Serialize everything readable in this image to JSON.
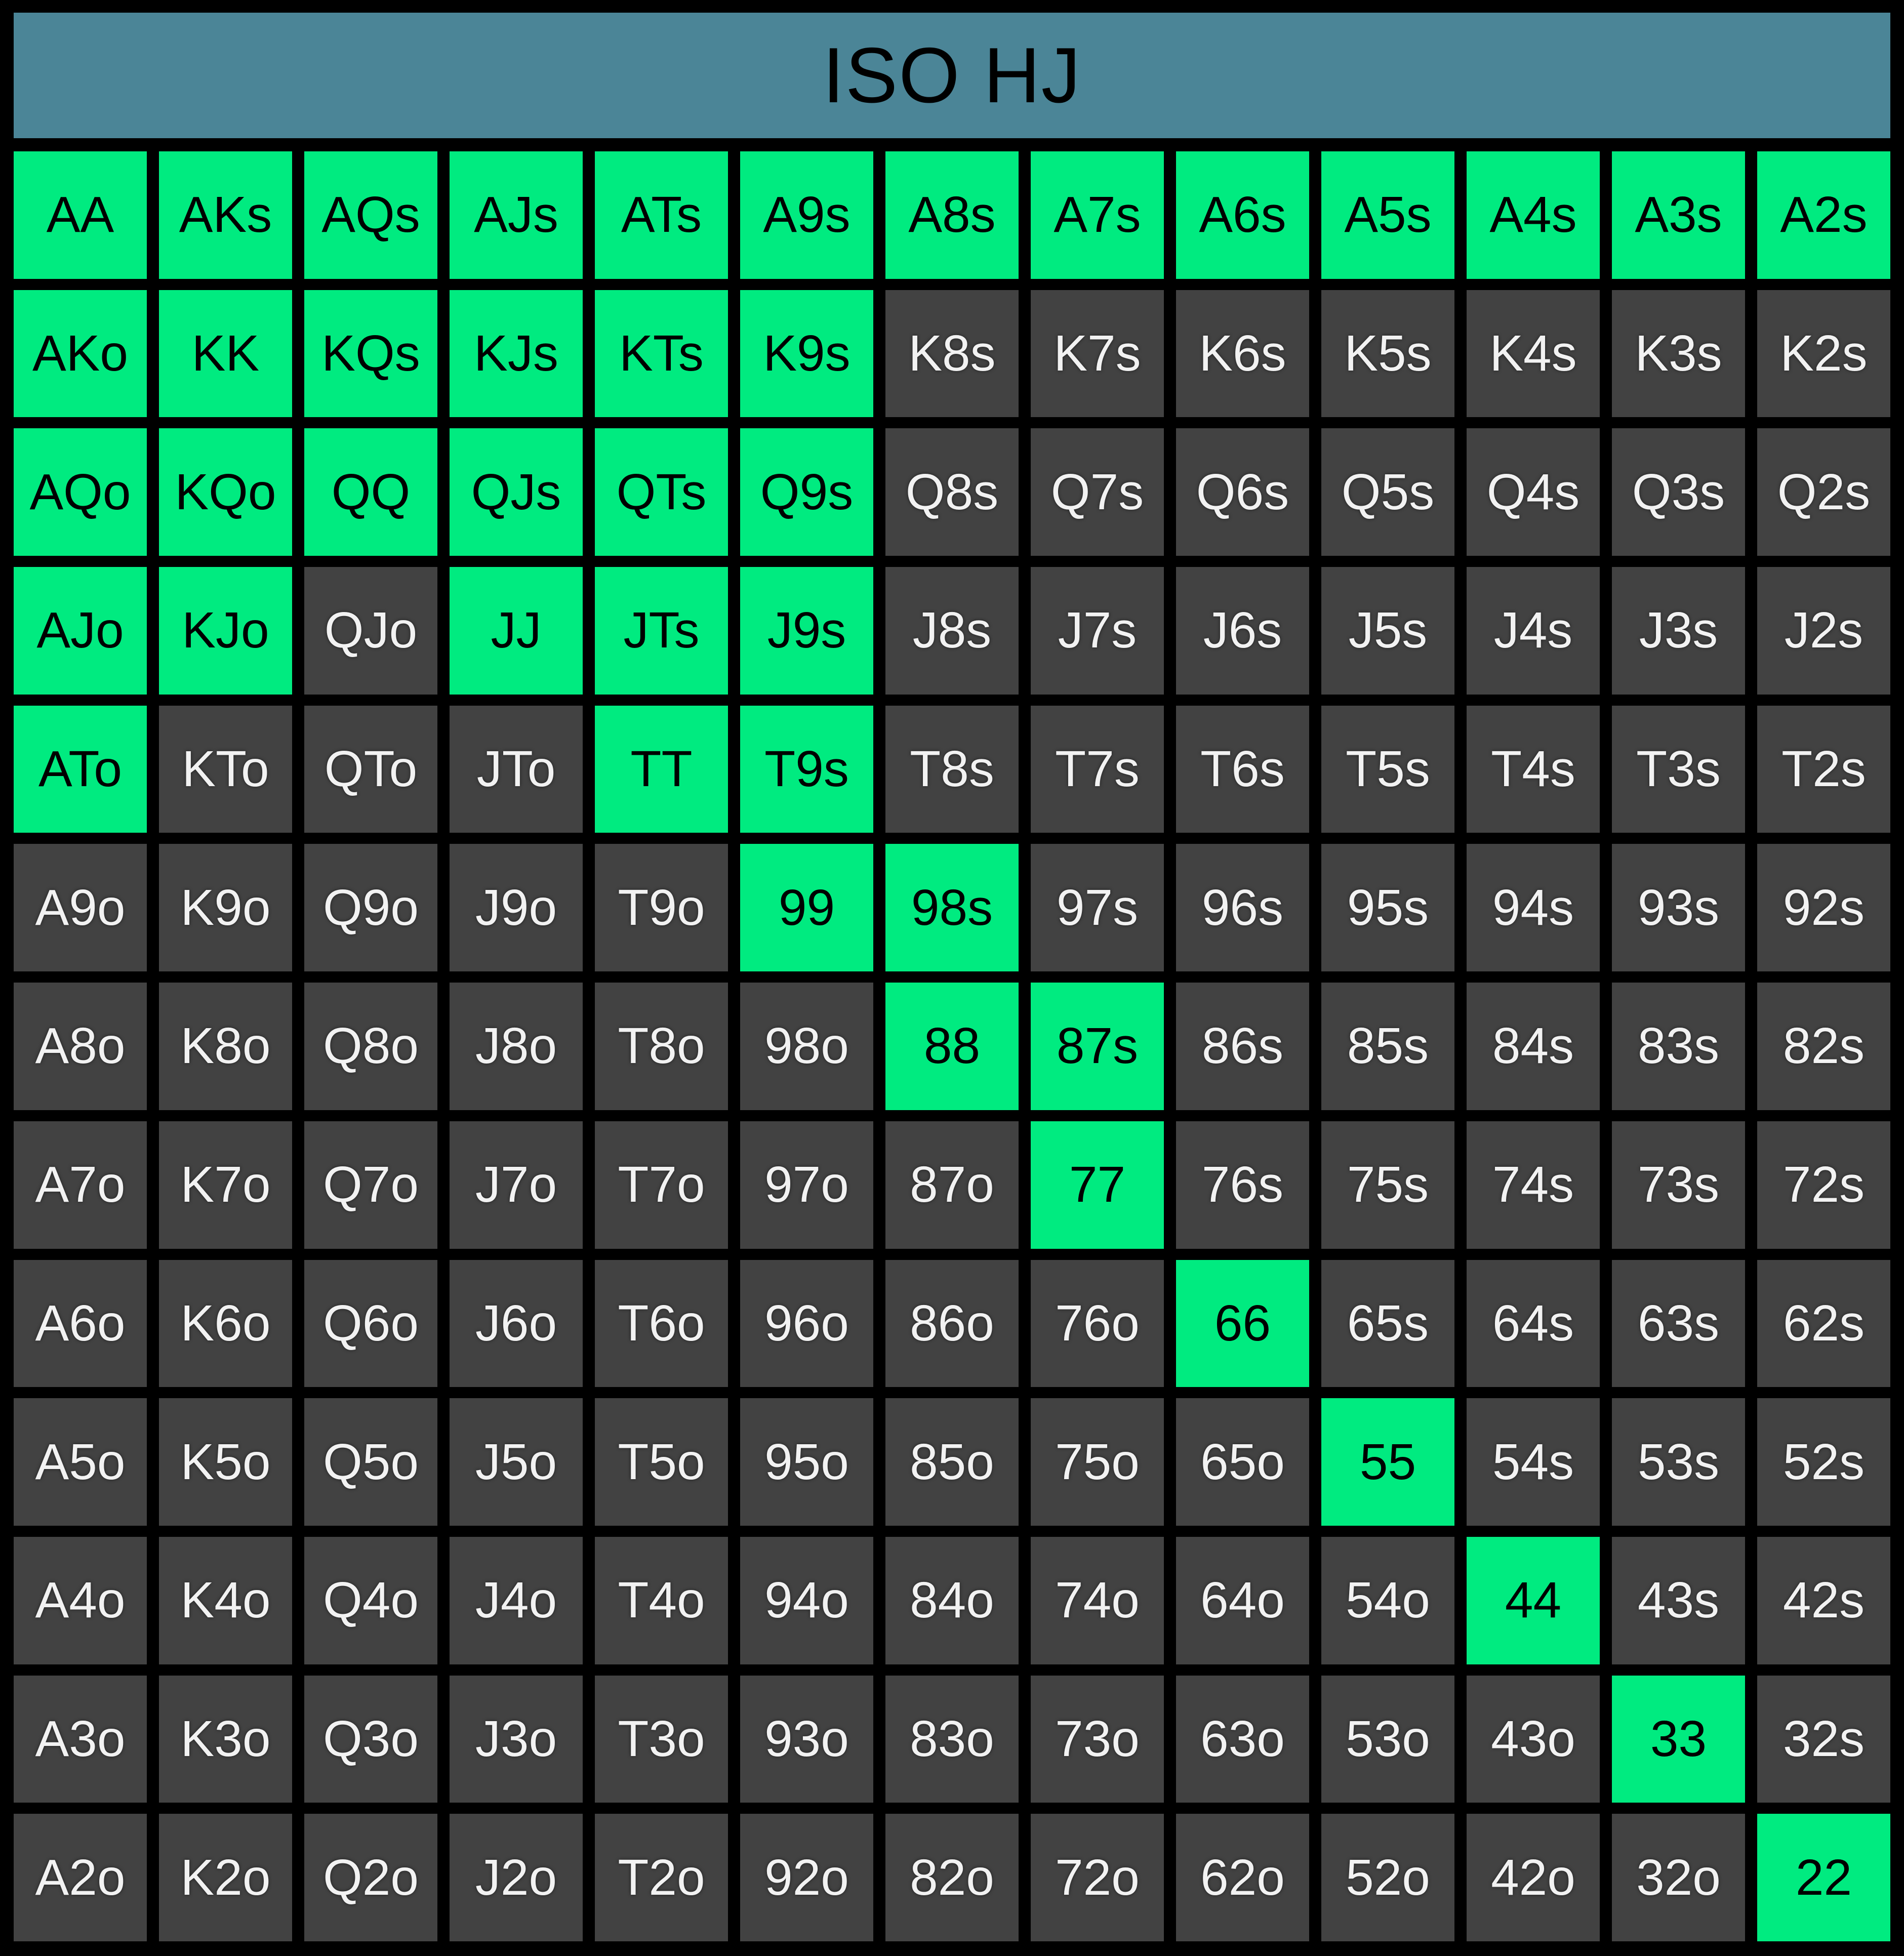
{
  "title": "ISO HJ",
  "colors": {
    "background": "#000000",
    "header": "#4B8597",
    "selected": "#00EB80",
    "unselected": "#424242",
    "text_on_selected": "#000000",
    "text_on_unselected": "#F2F2F2",
    "title_text": "#000000"
  },
  "grid": {
    "rows": [
      [
        "AA",
        "AKs",
        "AQs",
        "AJs",
        "ATs",
        "A9s",
        "A8s",
        "A7s",
        "A6s",
        "A5s",
        "A4s",
        "A3s",
        "A2s"
      ],
      [
        "AKo",
        "KK",
        "KQs",
        "KJs",
        "KTs",
        "K9s",
        "K8s",
        "K7s",
        "K6s",
        "K5s",
        "K4s",
        "K3s",
        "K2s"
      ],
      [
        "AQo",
        "KQo",
        "QQ",
        "QJs",
        "QTs",
        "Q9s",
        "Q8s",
        "Q7s",
        "Q6s",
        "Q5s",
        "Q4s",
        "Q3s",
        "Q2s"
      ],
      [
        "AJo",
        "KJo",
        "QJo",
        "JJ",
        "JTs",
        "J9s",
        "J8s",
        "J7s",
        "J6s",
        "J5s",
        "J4s",
        "J3s",
        "J2s"
      ],
      [
        "ATo",
        "KTo",
        "QTo",
        "JTo",
        "TT",
        "T9s",
        "T8s",
        "T7s",
        "T6s",
        "T5s",
        "T4s",
        "T3s",
        "T2s"
      ],
      [
        "A9o",
        "K9o",
        "Q9o",
        "J9o",
        "T9o",
        "99",
        "98s",
        "97s",
        "96s",
        "95s",
        "94s",
        "93s",
        "92s"
      ],
      [
        "A8o",
        "K8o",
        "Q8o",
        "J8o",
        "T8o",
        "98o",
        "88",
        "87s",
        "86s",
        "85s",
        "84s",
        "83s",
        "82s"
      ],
      [
        "A7o",
        "K7o",
        "Q7o",
        "J7o",
        "T7o",
        "97o",
        "87o",
        "77",
        "76s",
        "75s",
        "74s",
        "73s",
        "72s"
      ],
      [
        "A6o",
        "K6o",
        "Q6o",
        "J6o",
        "T6o",
        "96o",
        "86o",
        "76o",
        "66",
        "65s",
        "64s",
        "63s",
        "62s"
      ],
      [
        "A5o",
        "K5o",
        "Q5o",
        "J5o",
        "T5o",
        "95o",
        "85o",
        "75o",
        "65o",
        "55",
        "54s",
        "53s",
        "52s"
      ],
      [
        "A4o",
        "K4o",
        "Q4o",
        "J4o",
        "T4o",
        "94o",
        "84o",
        "74o",
        "64o",
        "54o",
        "44",
        "43s",
        "42s"
      ],
      [
        "A3o",
        "K3o",
        "Q3o",
        "J3o",
        "T3o",
        "93o",
        "83o",
        "73o",
        "63o",
        "53o",
        "43o",
        "33",
        "32s"
      ],
      [
        "A2o",
        "K2o",
        "Q2o",
        "J2o",
        "T2o",
        "92o",
        "82o",
        "72o",
        "62o",
        "52o",
        "42o",
        "32o",
        "22"
      ]
    ],
    "selected": [
      "AA",
      "AKs",
      "AQs",
      "AJs",
      "ATs",
      "A9s",
      "A8s",
      "A7s",
      "A6s",
      "A5s",
      "A4s",
      "A3s",
      "A2s",
      "AKo",
      "KK",
      "KQs",
      "KJs",
      "KTs",
      "K9s",
      "AQo",
      "KQo",
      "QQ",
      "QJs",
      "QTs",
      "Q9s",
      "AJo",
      "KJo",
      "JJ",
      "JTs",
      "J9s",
      "ATo",
      "TT",
      "T9s",
      "99",
      "98s",
      "88",
      "87s",
      "77",
      "66",
      "55",
      "44",
      "33",
      "22"
    ]
  }
}
